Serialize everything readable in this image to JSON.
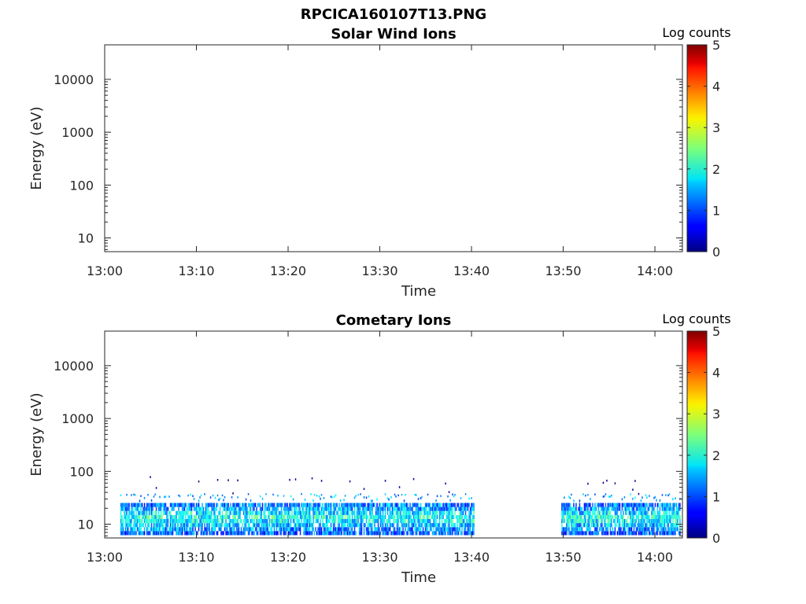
{
  "figure_title": "RPCICA160107T13.PNG",
  "chart_data": [
    {
      "type": "heatmap",
      "title": "Solar Wind Ions",
      "xlabel": "Time",
      "ylabel": "Energy (eV)",
      "x_ticks": [
        "13:00",
        "13:10",
        "13:20",
        "13:30",
        "13:40",
        "13:50",
        "14:00"
      ],
      "x_range_minutes": [
        0,
        63
      ],
      "y_scale": "log",
      "y_ticks": [
        "10",
        "100",
        "1000",
        "10000"
      ],
      "y_range": [
        5.5,
        45000
      ],
      "colorbar": {
        "label": "Log counts",
        "range": [
          0,
          5
        ],
        "ticks": [
          "0",
          "1",
          "2",
          "3",
          "4",
          "5"
        ],
        "colormap": "jet"
      },
      "data_present": false,
      "segments": []
    },
    {
      "type": "heatmap",
      "title": "Cometary Ions",
      "xlabel": "Time",
      "ylabel": "Energy (eV)",
      "x_ticks": [
        "13:00",
        "13:10",
        "13:20",
        "13:30",
        "13:40",
        "13:50",
        "14:00"
      ],
      "x_range_minutes": [
        0,
        63
      ],
      "y_scale": "log",
      "y_ticks": [
        "10",
        "100",
        "1000",
        "10000"
      ],
      "y_range": [
        5.5,
        45000
      ],
      "colorbar": {
        "label": "Log counts",
        "range": [
          0,
          5
        ],
        "ticks": [
          "0",
          "1",
          "2",
          "3",
          "4",
          "5"
        ],
        "colormap": "jet"
      },
      "data_present": true,
      "segments": [
        {
          "start": "13:01.7",
          "end": "13:40.3",
          "energy_range_eV": [
            6,
            30
          ],
          "peak_energy_eV": 12,
          "peak_log_counts": 2.0,
          "sparse_up_to_eV": 80
        },
        {
          "start": "13:49.8",
          "end": "14:02.8",
          "energy_range_eV": [
            6,
            30
          ],
          "peak_energy_eV": 12,
          "peak_log_counts": 2.0,
          "sparse_up_to_eV": 80
        }
      ]
    }
  ]
}
